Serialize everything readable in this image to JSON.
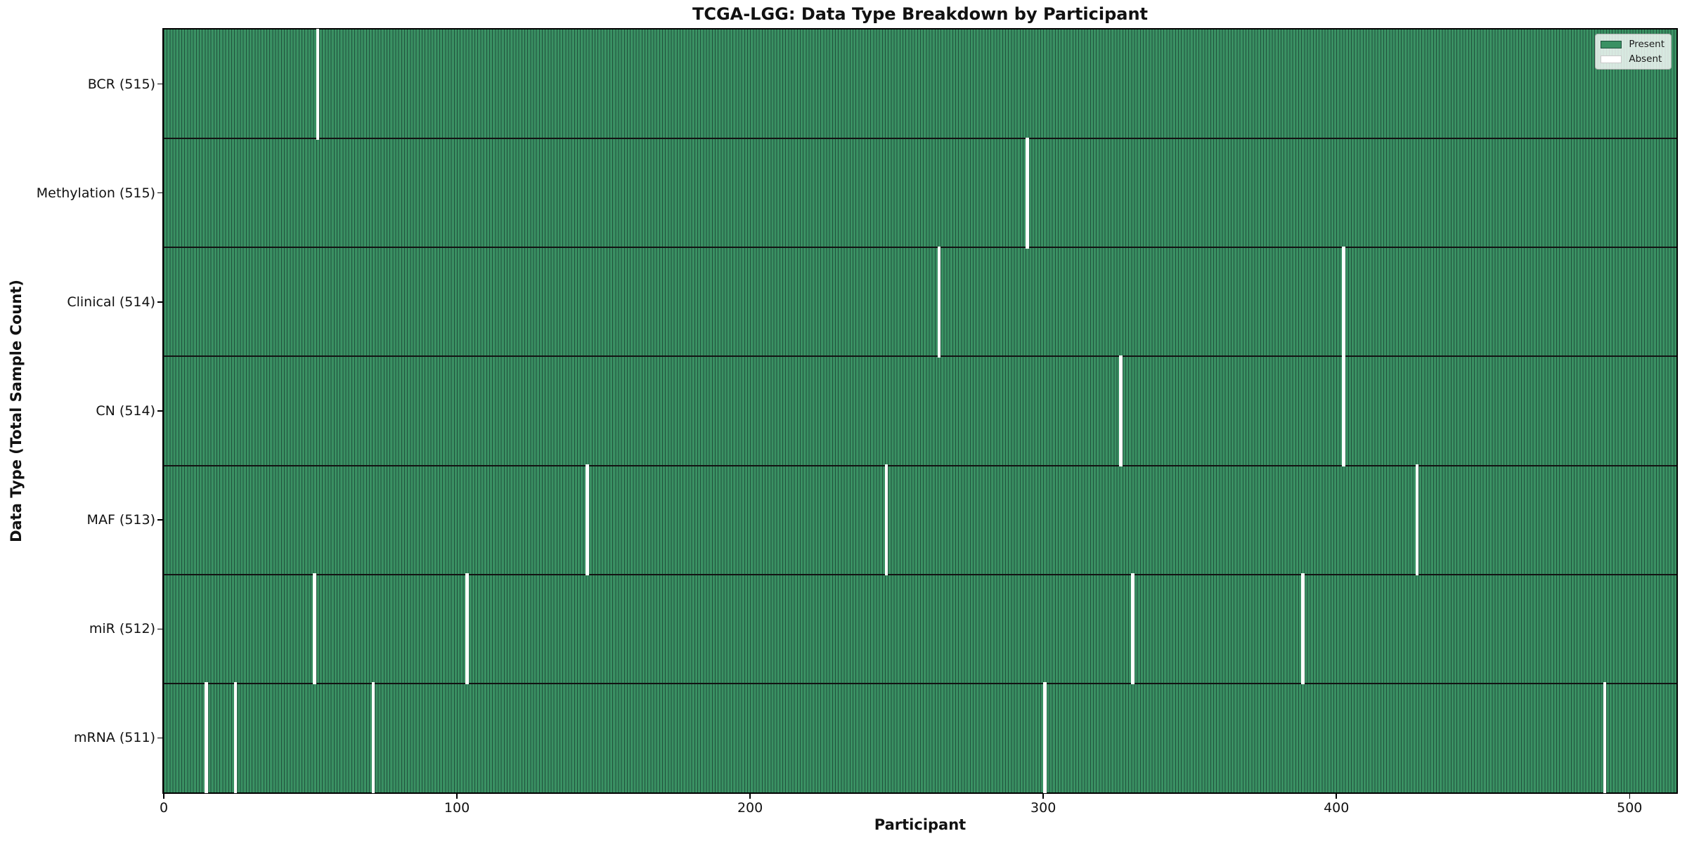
{
  "title": "TCGA-LGG: Data Type Breakdown by Participant",
  "x_axis": {
    "label": "Participant",
    "ticks": [
      "0",
      "100",
      "200",
      "300",
      "400",
      "500"
    ]
  },
  "y_axis": {
    "label": "Data Type (Total Sample Count)"
  },
  "legend": {
    "present_label": "Present",
    "absent_label": "Absent"
  },
  "colors": {
    "present_fill": "#3a9163",
    "bar_edge": "#20503c",
    "absent": "#ffffff",
    "row_divider": "#131313",
    "axis": "#000000",
    "text": "#111111"
  },
  "chart_data": {
    "type": "heatmap",
    "title": "TCGA-LGG: Data Type Breakdown by Participant",
    "xlabel": "Participant",
    "ylabel": "Data Type (Total Sample Count)",
    "x_range": [
      0,
      516
    ],
    "n_participants": 516,
    "x_ticks": [
      0,
      100,
      200,
      300,
      400,
      500
    ],
    "grid": false,
    "legend_position": "upper right",
    "cell_states": {
      "present": 1,
      "absent": 0
    },
    "legend_entries": [
      {
        "label": "Present",
        "color": "#3a9163"
      },
      {
        "label": "Absent",
        "color": "#ffffff"
      }
    ],
    "rows": [
      {
        "data_type": "BCR",
        "total": 515,
        "label": "BCR (515)",
        "absent_participants": [
          52
        ]
      },
      {
        "data_type": "Methylation",
        "total": 515,
        "label": "Methylation (515)",
        "absent_participants": [
          294
        ]
      },
      {
        "data_type": "Clinical",
        "total": 514,
        "label": "Clinical (514)",
        "absent_participants": [
          264,
          402
        ]
      },
      {
        "data_type": "CN",
        "total": 514,
        "label": "CN (514)",
        "absent_participants": [
          326,
          402
        ]
      },
      {
        "data_type": "MAF",
        "total": 513,
        "label": "MAF (513)",
        "absent_participants": [
          144,
          246,
          427
        ]
      },
      {
        "data_type": "miR",
        "total": 512,
        "label": "miR (512)",
        "absent_participants": [
          51,
          103,
          330,
          388
        ]
      },
      {
        "data_type": "mRNA",
        "total": 511,
        "label": "mRNA (511)",
        "absent_participants": [
          14,
          24,
          71,
          300,
          491
        ]
      }
    ]
  }
}
